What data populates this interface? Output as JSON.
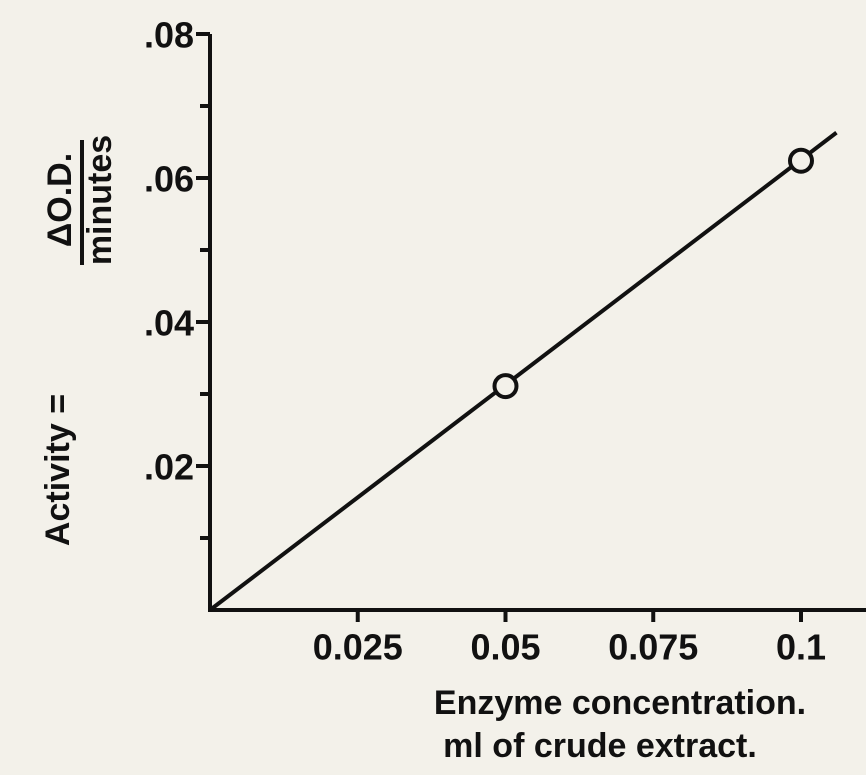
{
  "chart_data": {
    "type": "scatter",
    "x_label": [
      "Enzyme concentration.",
      "ml of crude extract."
    ],
    "y_label": {
      "prefix": "Activity =",
      "numerator": "ΔO.D.",
      "denominator": "minutes"
    },
    "x": [
      0.05,
      0.1
    ],
    "values": [
      0.0311,
      0.0624
    ],
    "fit_line": {
      "x": [
        0,
        0.106
      ],
      "values": [
        0,
        0.0663
      ]
    },
    "color": "#111111",
    "xlim": [
      0,
      0.111
    ],
    "ylim": [
      0,
      0.08
    ],
    "xticks": [
      0.025,
      0.05,
      0.075,
      0.1
    ],
    "yticks": [
      {
        "value": 0.02,
        "label": ".02"
      },
      {
        "value": 0.04,
        "label": ".04"
      },
      {
        "value": 0.06,
        "label": ".06"
      },
      {
        "value": 0.08,
        "label": ".08"
      }
    ],
    "yminorticks": [
      0.01,
      0.03,
      0.05,
      0.07
    ]
  }
}
